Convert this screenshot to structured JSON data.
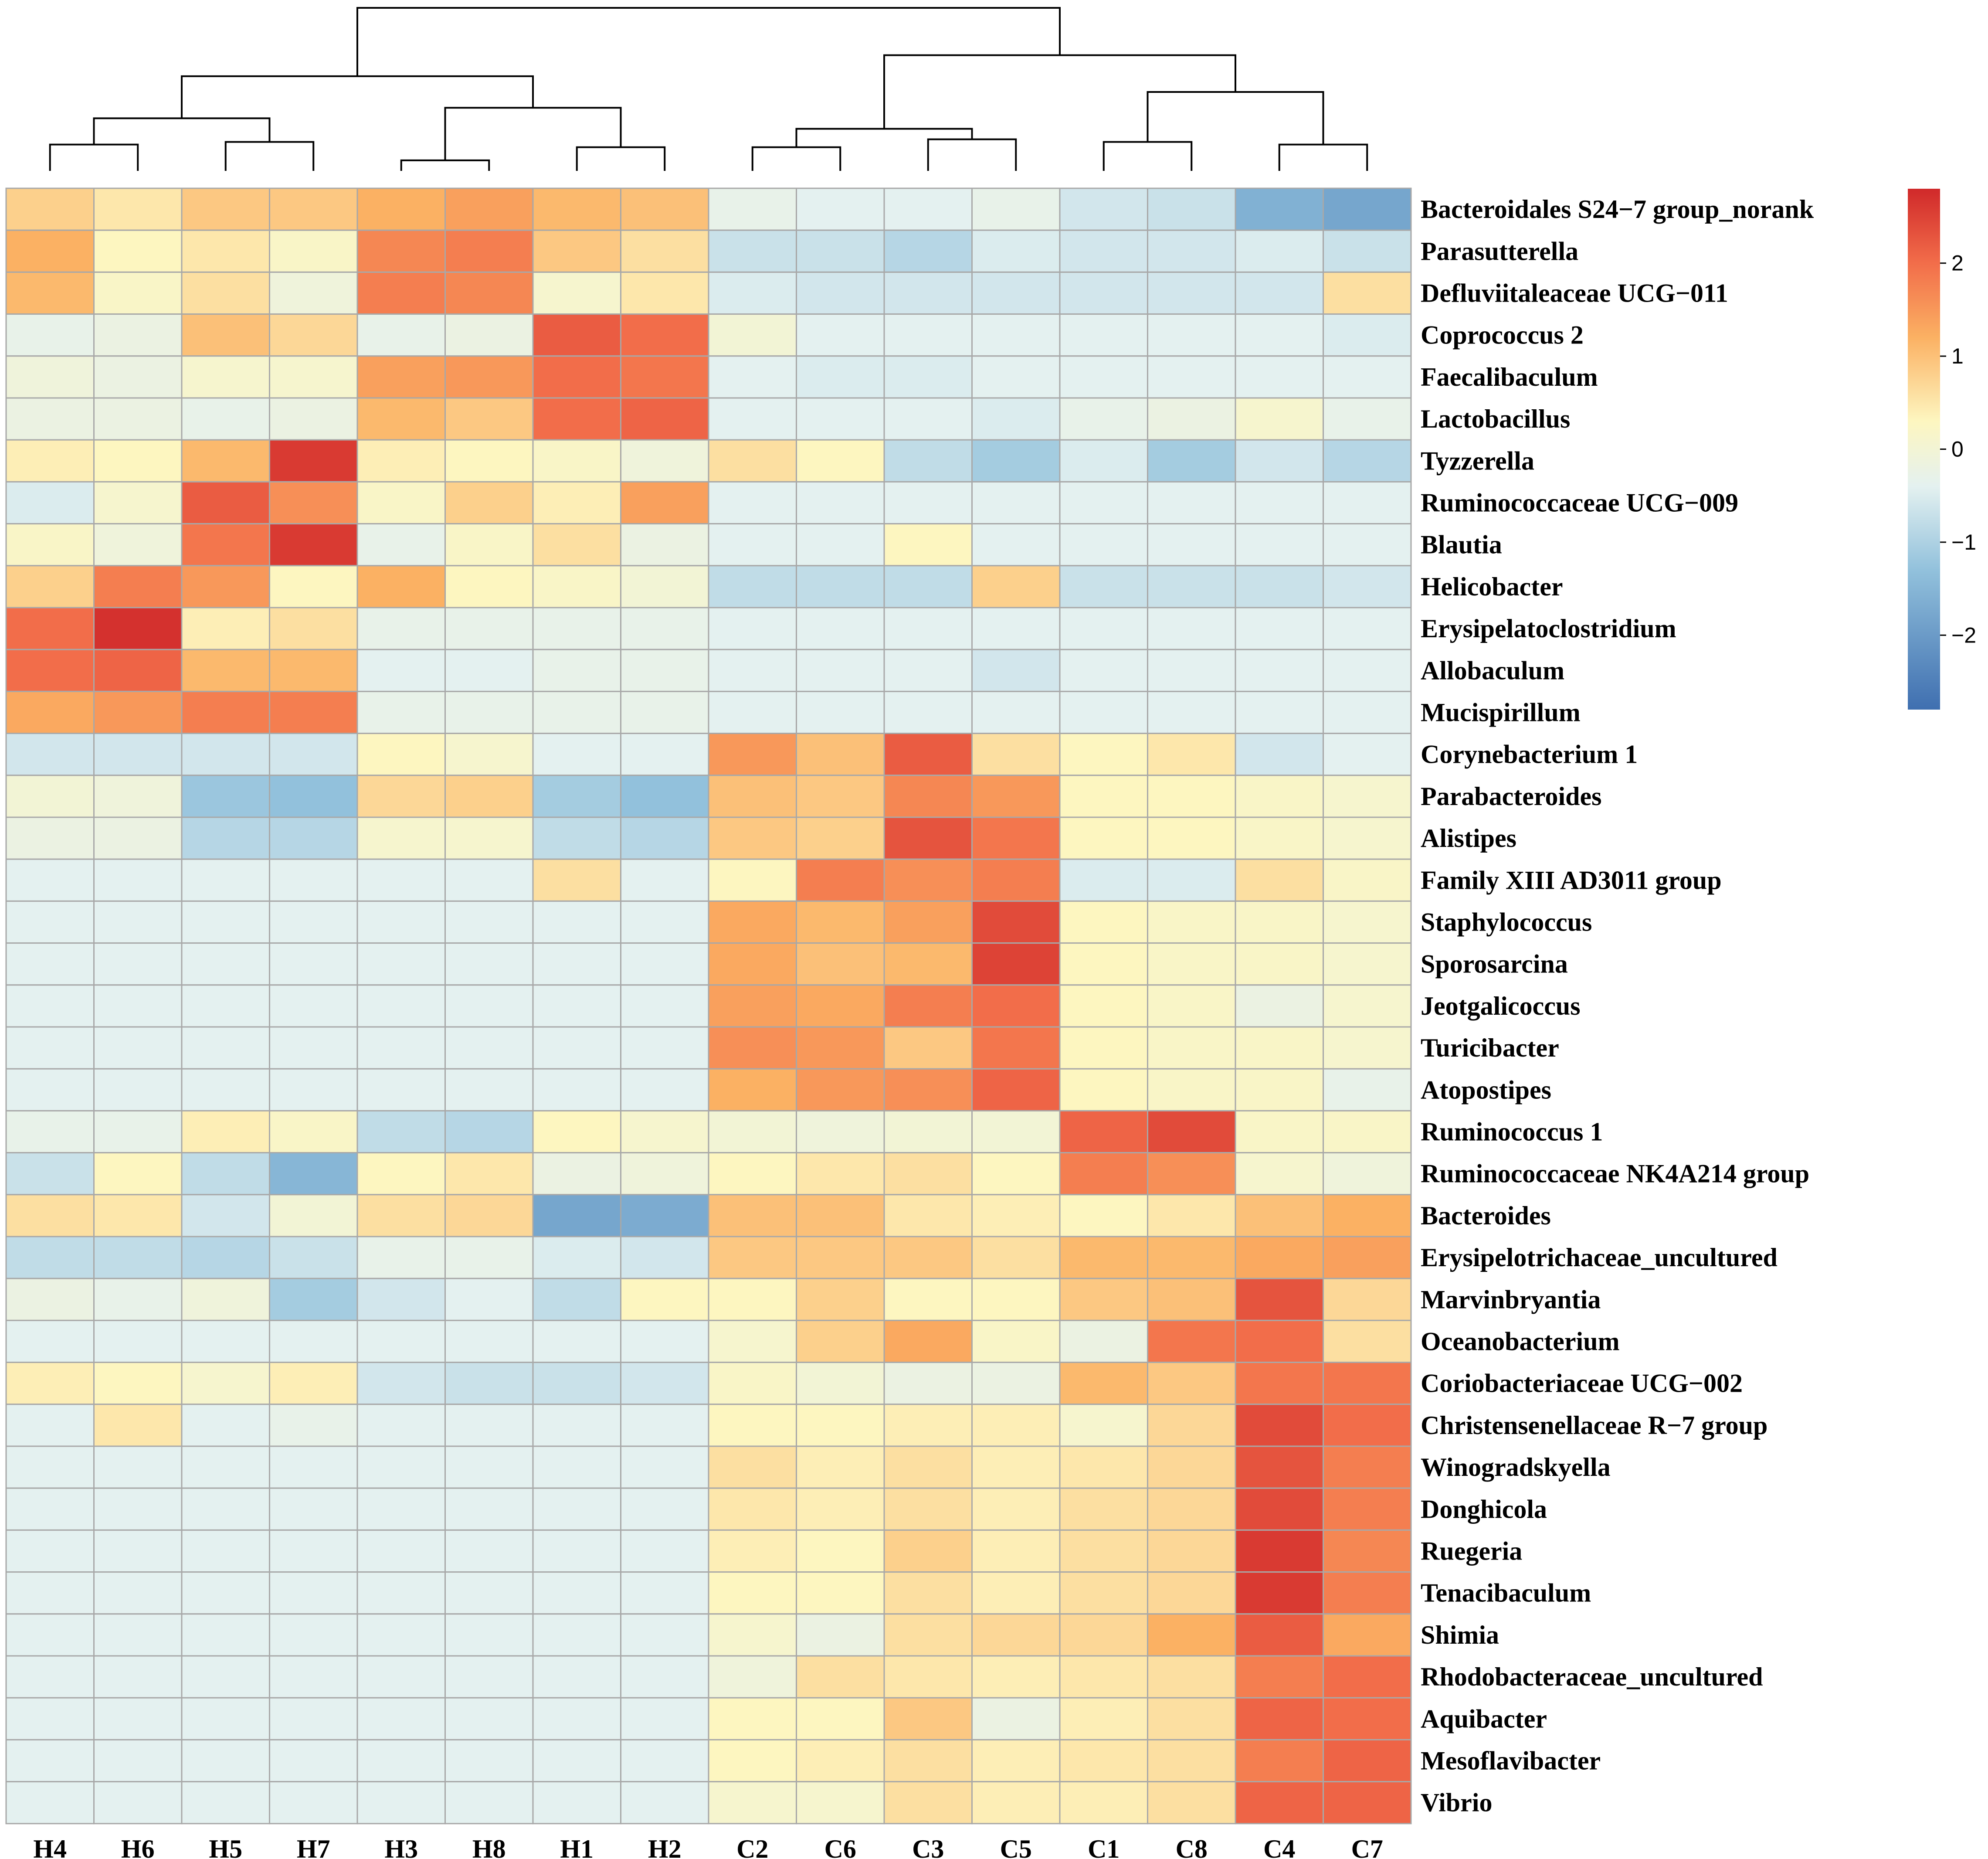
{
  "chart_data": {
    "type": "heatmap",
    "title": "",
    "columns": [
      "H4",
      "H6",
      "H5",
      "H7",
      "H3",
      "H8",
      "H1",
      "H2",
      "C2",
      "C6",
      "C3",
      "C5",
      "C1",
      "C8",
      "C4",
      "C7"
    ],
    "rows": [
      "Bacteroidales S24−7 group_norank",
      "Parasutterella",
      "Defluviitaleaceae UCG−011",
      "Coprococcus 2",
      "Faecalibaculum",
      "Lactobacillus",
      "Tyzzerella",
      "Ruminococcaceae UCG−009",
      "Blautia",
      "Helicobacter",
      "Erysipelatoclostridium",
      "Allobaculum",
      "Mucispirillum",
      "Corynebacterium 1",
      "Parabacteroides",
      "Alistipes",
      "Family XIII AD3011 group",
      "Staphylococcus",
      "Sporosarcina",
      "Jeotgalicoccus",
      "Turicibacter",
      "Atopostipes",
      "Ruminococcus 1",
      "Ruminococcaceae NK4A214 group",
      "Bacteroides",
      "Erysipelotrichaceae_uncultured",
      "Marvinbryantia",
      "Oceanobacterium",
      "Coriobacteriaceae UCG−002",
      "Christensenellaceae R−7 group",
      "Winogradskyella",
      "Donghicola",
      "Ruegeria",
      "Tenacibaculum",
      "Shimia",
      "Rhodobacteraceae_uncultured",
      "Aquibacter",
      "Mesoflavibacter",
      "Vibrio"
    ],
    "values": [
      [
        0.8,
        0.5,
        0.9,
        0.9,
        1.2,
        1.4,
        1.1,
        1.0,
        -0.3,
        -0.4,
        -0.4,
        -0.3,
        -0.6,
        -0.7,
        -1.6,
        -1.8
      ],
      [
        1.2,
        0.3,
        0.5,
        0.2,
        1.7,
        1.8,
        0.9,
        0.6,
        -0.7,
        -0.7,
        -0.9,
        -0.5,
        -0.6,
        -0.6,
        -0.5,
        -0.7
      ],
      [
        1.1,
        0.2,
        0.6,
        -0.1,
        1.8,
        1.7,
        0.1,
        0.5,
        -0.5,
        -0.6,
        -0.6,
        -0.6,
        -0.6,
        -0.6,
        -0.6,
        0.6
      ],
      [
        -0.3,
        -0.2,
        1.0,
        0.7,
        -0.3,
        -0.2,
        2.2,
        2.0,
        0.0,
        -0.4,
        -0.4,
        -0.4,
        -0.4,
        -0.4,
        -0.4,
        -0.5
      ],
      [
        -0.1,
        -0.2,
        0.1,
        0.1,
        1.4,
        1.5,
        2.0,
        1.9,
        -0.4,
        -0.5,
        -0.5,
        -0.4,
        -0.4,
        -0.4,
        -0.4,
        -0.4
      ],
      [
        -0.2,
        -0.2,
        -0.3,
        -0.2,
        1.1,
        0.9,
        2.0,
        2.1,
        -0.4,
        -0.4,
        -0.4,
        -0.5,
        -0.3,
        -0.2,
        0.1,
        -0.3
      ],
      [
        0.4,
        0.3,
        1.1,
        2.6,
        0.4,
        0.3,
        0.2,
        -0.1,
        0.6,
        0.3,
        -0.8,
        -1.1,
        -0.5,
        -1.1,
        -0.6,
        -0.9
      ],
      [
        -0.5,
        0.1,
        2.2,
        1.6,
        0.2,
        0.8,
        0.4,
        1.4,
        -0.4,
        -0.4,
        -0.4,
        -0.4,
        -0.4,
        -0.4,
        -0.4,
        -0.4
      ],
      [
        0.2,
        -0.1,
        1.9,
        2.6,
        -0.3,
        0.2,
        0.6,
        -0.2,
        -0.4,
        -0.4,
        0.3,
        -0.4,
        -0.4,
        -0.4,
        -0.4,
        -0.4
      ],
      [
        0.8,
        1.8,
        1.5,
        0.3,
        1.2,
        0.3,
        0.2,
        0.0,
        -0.8,
        -0.8,
        -0.8,
        0.8,
        -0.7,
        -0.7,
        -0.7,
        -0.6
      ],
      [
        2.0,
        2.7,
        0.4,
        0.6,
        -0.3,
        -0.3,
        -0.3,
        -0.3,
        -0.4,
        -0.4,
        -0.4,
        -0.4,
        -0.4,
        -0.4,
        -0.4,
        -0.4
      ],
      [
        2.0,
        2.1,
        1.1,
        1.1,
        -0.4,
        -0.4,
        -0.3,
        -0.3,
        -0.4,
        -0.4,
        -0.4,
        -0.6,
        -0.4,
        -0.4,
        -0.4,
        -0.4
      ],
      [
        1.3,
        1.5,
        1.8,
        1.8,
        -0.3,
        -0.3,
        -0.3,
        -0.3,
        -0.4,
        -0.4,
        -0.4,
        -0.4,
        -0.4,
        -0.4,
        -0.4,
        -0.4
      ],
      [
        -0.6,
        -0.6,
        -0.6,
        -0.6,
        0.3,
        0.1,
        -0.4,
        -0.4,
        1.5,
        1.0,
        2.2,
        0.6,
        0.3,
        0.5,
        -0.6,
        -0.4
      ],
      [
        0.0,
        -0.1,
        -1.2,
        -1.3,
        0.7,
        0.8,
        -1.1,
        -1.3,
        1.0,
        0.9,
        1.7,
        1.5,
        0.3,
        0.3,
        0.2,
        0.1
      ],
      [
        -0.2,
        -0.2,
        -0.9,
        -0.9,
        0.1,
        0.1,
        -0.8,
        -0.9,
        0.9,
        0.8,
        2.3,
        1.9,
        0.3,
        0.3,
        0.2,
        0.1
      ],
      [
        -0.4,
        -0.4,
        -0.4,
        -0.4,
        -0.4,
        -0.4,
        0.6,
        -0.4,
        0.3,
        1.8,
        1.6,
        1.8,
        -0.5,
        -0.5,
        0.6,
        0.2
      ],
      [
        -0.4,
        -0.4,
        -0.4,
        -0.4,
        -0.4,
        -0.4,
        -0.4,
        -0.4,
        1.3,
        1.1,
        1.4,
        2.4,
        0.3,
        0.2,
        0.2,
        0.1
      ],
      [
        -0.4,
        -0.4,
        -0.4,
        -0.4,
        -0.4,
        -0.4,
        -0.4,
        -0.4,
        1.3,
        1.0,
        1.1,
        2.5,
        0.3,
        0.2,
        0.2,
        0.1
      ],
      [
        -0.4,
        -0.4,
        -0.4,
        -0.4,
        -0.4,
        -0.4,
        -0.4,
        -0.4,
        1.4,
        1.3,
        1.8,
        2.0,
        0.3,
        0.2,
        -0.2,
        0.1
      ],
      [
        -0.4,
        -0.4,
        -0.4,
        -0.4,
        -0.4,
        -0.4,
        -0.4,
        -0.4,
        1.6,
        1.5,
        0.9,
        1.9,
        0.3,
        0.2,
        0.2,
        0.1
      ],
      [
        -0.4,
        -0.4,
        -0.4,
        -0.4,
        -0.4,
        -0.4,
        -0.4,
        -0.4,
        1.2,
        1.5,
        1.6,
        2.1,
        0.3,
        0.2,
        0.2,
        -0.3
      ],
      [
        -0.3,
        -0.3,
        0.4,
        0.2,
        -0.8,
        -0.9,
        0.3,
        0.1,
        0.0,
        -0.1,
        0.0,
        0.0,
        2.1,
        2.4,
        0.2,
        0.2
      ],
      [
        -0.7,
        0.3,
        -0.8,
        -1.5,
        0.3,
        0.5,
        -0.2,
        -0.1,
        0.3,
        0.5,
        0.6,
        0.3,
        1.8,
        1.6,
        0.1,
        -0.1
      ],
      [
        0.6,
        0.5,
        -0.6,
        0.0,
        0.6,
        0.7,
        -1.8,
        -1.7,
        1.0,
        1.0,
        0.5,
        0.4,
        0.3,
        0.5,
        1.0,
        1.2
      ],
      [
        -0.8,
        -0.8,
        -0.9,
        -0.7,
        -0.3,
        -0.3,
        -0.5,
        -0.6,
        0.9,
        0.9,
        0.9,
        0.6,
        1.1,
        1.1,
        1.3,
        1.4
      ],
      [
        -0.2,
        -0.3,
        -0.1,
        -1.1,
        -0.6,
        -0.4,
        -0.8,
        0.3,
        0.3,
        0.8,
        0.3,
        0.3,
        0.9,
        1.0,
        2.3,
        0.7
      ],
      [
        -0.4,
        -0.4,
        -0.4,
        -0.4,
        -0.4,
        -0.4,
        -0.4,
        -0.4,
        0.1,
        0.8,
        1.3,
        0.2,
        -0.2,
        1.9,
        2.0,
        0.6
      ],
      [
        0.4,
        0.3,
        0.1,
        0.4,
        -0.6,
        -0.7,
        -0.7,
        -0.6,
        0.2,
        0.0,
        -0.2,
        -0.2,
        1.1,
        0.9,
        1.9,
        1.9
      ],
      [
        -0.4,
        0.5,
        -0.4,
        -0.3,
        -0.4,
        -0.4,
        -0.4,
        -0.4,
        0.3,
        0.3,
        0.4,
        0.4,
        0.1,
        0.7,
        2.4,
        2.0
      ],
      [
        -0.4,
        -0.4,
        -0.4,
        -0.4,
        -0.4,
        -0.4,
        -0.4,
        -0.4,
        0.6,
        0.4,
        0.6,
        0.4,
        0.5,
        0.7,
        2.3,
        1.8
      ],
      [
        -0.4,
        -0.4,
        -0.4,
        -0.4,
        -0.4,
        -0.4,
        -0.4,
        -0.4,
        0.5,
        0.4,
        0.6,
        0.4,
        0.6,
        0.7,
        2.4,
        1.8
      ],
      [
        -0.4,
        -0.4,
        -0.4,
        -0.4,
        -0.4,
        -0.4,
        -0.4,
        -0.4,
        0.4,
        0.3,
        0.8,
        0.4,
        0.6,
        0.7,
        2.6,
        1.7
      ],
      [
        -0.4,
        -0.4,
        -0.4,
        -0.4,
        -0.4,
        -0.4,
        -0.4,
        -0.4,
        0.3,
        0.3,
        0.6,
        0.4,
        0.6,
        0.7,
        2.6,
        1.8
      ],
      [
        -0.4,
        -0.4,
        -0.4,
        -0.4,
        -0.4,
        -0.4,
        -0.4,
        -0.4,
        0.1,
        -0.2,
        0.6,
        0.7,
        0.7,
        1.2,
        2.2,
        1.3
      ],
      [
        -0.4,
        -0.4,
        -0.4,
        -0.4,
        -0.4,
        -0.4,
        -0.4,
        -0.4,
        -0.1,
        0.6,
        0.5,
        0.4,
        0.5,
        0.6,
        1.8,
        2.0
      ],
      [
        -0.4,
        -0.4,
        -0.4,
        -0.4,
        -0.4,
        -0.4,
        -0.4,
        -0.4,
        0.3,
        0.3,
        0.9,
        -0.2,
        0.4,
        0.6,
        2.1,
        2.0
      ],
      [
        -0.4,
        -0.4,
        -0.4,
        -0.4,
        -0.4,
        -0.4,
        -0.4,
        -0.4,
        0.3,
        0.4,
        0.6,
        0.4,
        0.5,
        0.6,
        1.8,
        2.1
      ],
      [
        -0.4,
        -0.4,
        -0.4,
        -0.4,
        -0.4,
        -0.4,
        -0.4,
        -0.4,
        0.1,
        0.1,
        0.6,
        0.4,
        0.4,
        0.6,
        2.1,
        2.1
      ]
    ],
    "color_scale": {
      "min": -2.8,
      "max": 2.8,
      "ticks": [
        2,
        1,
        0,
        -1,
        -2
      ],
      "tick_labels": [
        "2",
        "1",
        "0",
        "−1",
        "−2"
      ],
      "colors": [
        "#3f6fb0",
        "#92c1dc",
        "#e4f1f0",
        "#fdf6c0",
        "#fbb163",
        "#f26d4a",
        "#d0292a"
      ],
      "stops": [
        -2.8,
        -1.3,
        -0.4,
        0.3,
        1.2,
        2.0,
        2.8
      ]
    },
    "dendrogram": {
      "leaf_order": [
        "H4",
        "H6",
        "H5",
        "H7",
        "H3",
        "H8",
        "H1",
        "H2",
        "C2",
        "C6",
        "C3",
        "C5",
        "C1",
        "C8",
        "C4",
        "C7"
      ],
      "merges": [
        {
          "children": [
            0,
            1
          ],
          "height": 0.5
        },
        {
          "children": [
            2,
            3
          ],
          "height": 0.55
        },
        {
          "children": [
            4,
            5
          ],
          "height": 0.2
        },
        {
          "children": [
            6,
            7
          ],
          "height": 0.45
        },
        {
          "children": [
            8,
            9
          ],
          "height": 0.45
        },
        {
          "children": [
            10,
            11
          ],
          "height": 0.6
        },
        {
          "children": [
            12,
            13
          ],
          "height": 0.55
        },
        {
          "children": [
            14,
            15
          ],
          "height": 0.5
        },
        {
          "children": [
            16,
            17
          ],
          "height": 1.0
        },
        {
          "children": [
            18,
            19
          ],
          "height": 1.2
        },
        {
          "children": [
            20,
            21
          ],
          "height": 0.8
        },
        {
          "children": [
            22,
            23
          ],
          "height": 1.5
        },
        {
          "children": [
            24,
            25
          ],
          "height": 1.8
        },
        {
          "children": [
            26,
            27
          ],
          "height": 2.2
        },
        {
          "children": [
            28,
            29
          ],
          "height": 3.1
        }
      ],
      "max_height": 3.1
    }
  }
}
